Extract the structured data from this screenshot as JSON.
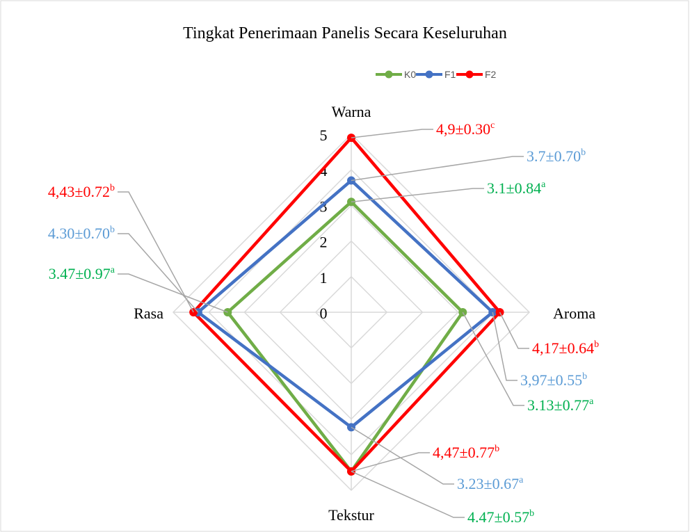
{
  "chart_data": {
    "type": "radar",
    "title": "Tingkat Penerimaan Panelis Secara Keseluruhan",
    "categories": [
      "Warna",
      "Aroma",
      "Tekstur",
      "Rasa"
    ],
    "rlim": [
      0,
      5
    ],
    "rticks": [
      0,
      1,
      2,
      3,
      4,
      5
    ],
    "grid": true,
    "legend": "top",
    "series": [
      {
        "name": "K0",
        "color": "#70ad47",
        "label_color": "#00b050",
        "values": [
          3.1,
          3.13,
          4.47,
          3.47
        ],
        "value_labels": [
          "3.1±0.84a",
          "3.13±0.77a",
          "4.47±0.57b",
          "3.47±0.97a"
        ]
      },
      {
        "name": "F1",
        "color": "#4472c4",
        "label_color": "#5b9bd5",
        "values": [
          3.7,
          3.97,
          3.23,
          4.3
        ],
        "value_labels": [
          "3.7±0.70b",
          "3,97±0.55b",
          "3.23±0.67a",
          "4.30±0.70b"
        ]
      },
      {
        "name": "F2",
        "color": "#ff0000",
        "label_color": "#ff0000",
        "values": [
          4.9,
          4.17,
          4.47,
          4.43
        ],
        "value_labels": [
          "4,9±0.30c",
          "4,17±0.64b",
          "4,47±0.77b",
          "4,43±0.72b"
        ]
      }
    ]
  }
}
